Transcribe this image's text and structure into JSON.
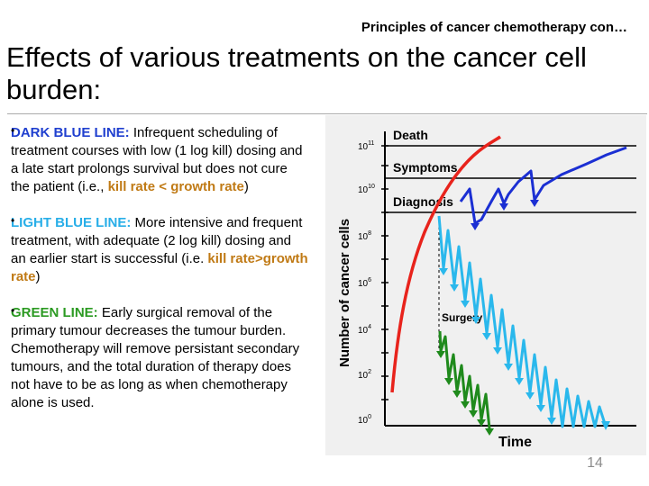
{
  "header": "Principles of cancer chemotherapy con…",
  "title": "Effects of various treatments on the cancer cell burden:",
  "bullets": [
    {
      "lead": "DARK BLUE LINE:",
      "text": " Infrequent scheduling of treatment courses with low (1 log kill) dosing and a late start prolongs survival but does not cure the patient (i.e., ",
      "emph": "kill rate < growth rate",
      "tail": ")"
    },
    {
      "lead": "LIGHT BLUE LINE:",
      "text": " More intensive and frequent treatment, with adequate (2 log kill) dosing and an earlier start is successful (i.e. ",
      "emph": "kill rate>growth rate",
      "tail": ")"
    },
    {
      "lead": "GREEN LINE:",
      "text": " Early surgical removal of the primary tumour decreases the tumour burden. Chemotherapy will remove persistant secondary tumours, and the total duration of therapy does not have to be as long as when chemotherapy alone is used.",
      "emph": "",
      "tail": ""
    }
  ],
  "figure": {
    "ylabel": "Number of cancer cells",
    "xlabel": "Time",
    "thresholds": [
      "Death",
      "Symptoms",
      "Diagnosis"
    ],
    "surgery_label": "Surgery",
    "ticks": [
      {
        "base": "10",
        "exp": "11"
      },
      {
        "base": "10",
        "exp": "10"
      },
      {
        "base": "10",
        "exp": "8"
      },
      {
        "base": "10",
        "exp": "6"
      },
      {
        "base": "10",
        "exp": "4"
      },
      {
        "base": "10",
        "exp": "2"
      },
      {
        "base": "10",
        "exp": "0"
      }
    ],
    "colors": {
      "red": "#e8231c",
      "dark_blue": "#1b2fd3",
      "light_blue": "#2ab8ec",
      "green": "#1f8a1c"
    }
  },
  "slide_number": "14"
}
